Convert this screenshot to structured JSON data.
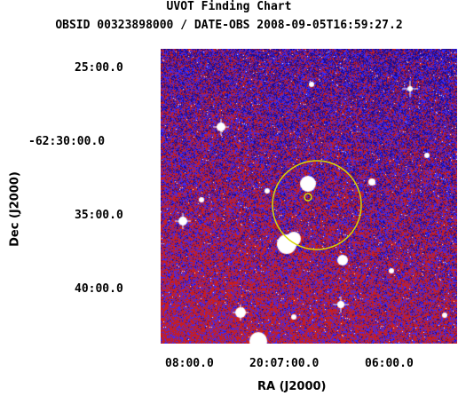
{
  "title": "UVOT Finding Chart",
  "subtitle": "OBSID 00323898000 / DATE-OBS 2008-09-05T16:59:27.2",
  "chart_data": {
    "type": "image",
    "xlabel": "RA (J2000)",
    "ylabel": "Dec (J2000)",
    "x_ticks": [
      "08:00.0",
      "20:07:00.0",
      "06:00.0"
    ],
    "y_ticks": [
      "25:00.0",
      "-62:30:00.0",
      "35:00.0",
      "40:00.0"
    ],
    "colormap": [
      "#1a0a8c",
      "#3a2aff",
      "#c81e1e",
      "#ffffff"
    ],
    "markers": [
      {
        "name": "error-circle-large",
        "color": "#d8d800"
      },
      {
        "name": "error-circle-small",
        "color": "#d8d800"
      }
    ]
  }
}
